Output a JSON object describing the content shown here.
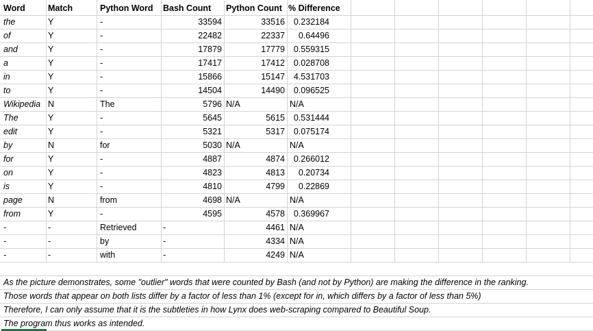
{
  "headers": [
    "Word",
    "Match",
    "Python Word",
    "Bash Count",
    "Python Count",
    "% Difference"
  ],
  "rows": [
    {
      "word": "the",
      "match": "Y",
      "python_word": "-",
      "bash": "33594",
      "python": "33516",
      "diff": "0.232184"
    },
    {
      "word": "of",
      "match": "Y",
      "python_word": "-",
      "bash": "22482",
      "python": "22337",
      "diff": "0.64496"
    },
    {
      "word": "and",
      "match": "Y",
      "python_word": "-",
      "bash": "17879",
      "python": "17779",
      "diff": "0.559315"
    },
    {
      "word": "a",
      "match": "Y",
      "python_word": "-",
      "bash": "17417",
      "python": "17412",
      "diff": "0.028708"
    },
    {
      "word": "in",
      "match": "Y",
      "python_word": "-",
      "bash": "15866",
      "python": "15147",
      "diff": "4.531703"
    },
    {
      "word": "to",
      "match": "Y",
      "python_word": "-",
      "bash": "14504",
      "python": "14490",
      "diff": "0.096525"
    },
    {
      "word": "Wikipedia",
      "match": "N",
      "python_word": "The",
      "bash": "5796",
      "python": "N/A",
      "diff": "N/A"
    },
    {
      "word": "The",
      "match": "Y",
      "python_word": "-",
      "bash": "5645",
      "python": "5615",
      "diff": "0.531444"
    },
    {
      "word": "edit",
      "match": "Y",
      "python_word": "-",
      "bash": "5321",
      "python": "5317",
      "diff": "0.075174"
    },
    {
      "word": "by",
      "match": "N",
      "python_word": "for",
      "bash": "5030",
      "python": "N/A",
      "diff": "N/A"
    },
    {
      "word": "for",
      "match": "Y",
      "python_word": "-",
      "bash": "4887",
      "python": "4874",
      "diff": "0.266012"
    },
    {
      "word": "on",
      "match": "Y",
      "python_word": "-",
      "bash": "4823",
      "python": "4813",
      "diff": "0.20734"
    },
    {
      "word": "is",
      "match": "Y",
      "python_word": "-",
      "bash": "4810",
      "python": "4799",
      "diff": "0.22869"
    },
    {
      "word": "page",
      "match": "N",
      "python_word": "from",
      "bash": "4698",
      "python": "N/A",
      "diff": "N/A"
    },
    {
      "word": "from",
      "match": "Y",
      "python_word": "-",
      "bash": "4595",
      "python": "4578",
      "diff": "0.369967"
    },
    {
      "word": "-",
      "match": "-",
      "python_word": "Retrieved",
      "bash": "-",
      "python": "4461",
      "diff": "N/A"
    },
    {
      "word": "-",
      "match": "-",
      "python_word": "by",
      "bash": "-",
      "python": "4334",
      "diff": "N/A"
    },
    {
      "word": "-",
      "match": "-",
      "python_word": "with",
      "bash": "-",
      "python": "4249",
      "diff": "N/A"
    }
  ],
  "notes": [
    "As the picture demonstrates, some \"outlier\" words that were counted by Bash (and not by Python) are making the difference in the ranking.",
    "Those words that appear on both lists differ by a factor of less than 1% (except for in, which differs by a factor of less than 5%)",
    "Therefore, I can only assume that it is the subtleties in how Lynx does web-scraping compared to Beautiful Soup.",
    "The program thus works as intended."
  ]
}
